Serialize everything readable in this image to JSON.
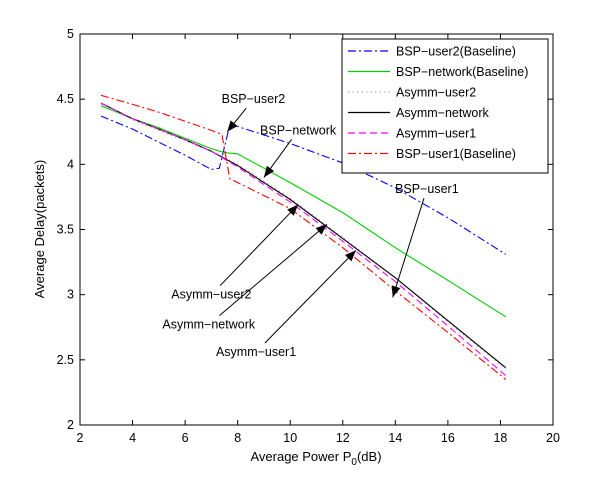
{
  "chart_data": {
    "type": "line",
    "title": "",
    "xlabel": "Average Power P",
    "xlabel_sub": "0",
    "xlabel_suffix": "(dB)",
    "ylabel": "Average Delay(packets)",
    "xlim": [
      2,
      20
    ],
    "ylim": [
      2,
      5
    ],
    "xticks": [
      2,
      4,
      6,
      8,
      10,
      12,
      14,
      16,
      18,
      20
    ],
    "yticks": [
      2,
      2.5,
      3,
      3.5,
      4,
      4.5,
      5
    ],
    "xtick_labels": [
      "2",
      "4",
      "6",
      "8",
      "10",
      "12",
      "14",
      "16",
      "18",
      "20"
    ],
    "ytick_labels": [
      "2",
      "2.5",
      "3",
      "3.5",
      "4",
      "4.5",
      "5"
    ],
    "grid": false,
    "legend_position": "top-right",
    "series": [
      {
        "name": "BSP−user2(Baseline)",
        "color": "#0000ff",
        "dash": "dashdot",
        "x": [
          2.8,
          4,
          5,
          6,
          7,
          7.3,
          7.7,
          8,
          10,
          12,
          14,
          16,
          18.2
        ],
        "y": [
          4.37,
          4.27,
          4.17,
          4.07,
          3.96,
          3.97,
          4.3,
          4.29,
          4.16,
          4.01,
          3.82,
          3.59,
          3.31
        ]
      },
      {
        "name": "BSP−network(Baseline)",
        "color": "#00cc00",
        "dash": "solid",
        "x": [
          2.8,
          4,
          5,
          6,
          7,
          7.5,
          8,
          9,
          10,
          12,
          14,
          16,
          18.2
        ],
        "y": [
          4.45,
          4.35,
          4.28,
          4.2,
          4.12,
          4.09,
          4.08,
          3.97,
          3.86,
          3.63,
          3.36,
          3.11,
          2.83
        ]
      },
      {
        "name": "Asymm−user2",
        "color": "#b0b0b0",
        "dash": "dotted",
        "x": [
          2.8,
          4,
          5,
          6,
          7,
          8,
          10,
          12,
          14,
          16,
          18.2
        ],
        "y": [
          4.46,
          4.34,
          4.26,
          4.18,
          4.1,
          4.0,
          3.74,
          3.44,
          3.13,
          2.79,
          2.43
        ]
      },
      {
        "name": "Asymm−network",
        "color": "#000000",
        "dash": "solid",
        "x": [
          2.8,
          4,
          5,
          6,
          7,
          8,
          10,
          12,
          14,
          16,
          18.2
        ],
        "y": [
          4.47,
          4.35,
          4.27,
          4.19,
          4.1,
          3.99,
          3.73,
          3.43,
          3.13,
          2.8,
          2.44
        ]
      },
      {
        "name": "Asymm−user1",
        "color": "#ff00ff",
        "dash": "dashed",
        "x": [
          2.8,
          4,
          5,
          6,
          7,
          8,
          10,
          12,
          14,
          16,
          18.2
        ],
        "y": [
          4.47,
          4.35,
          4.27,
          4.19,
          4.1,
          3.98,
          3.71,
          3.41,
          3.1,
          2.76,
          2.38
        ]
      },
      {
        "name": "BSP−user1(Baseline)",
        "color": "#ff0000",
        "dash": "dashdot",
        "x": [
          2.8,
          4,
          5,
          6,
          7,
          7.4,
          7.7,
          8,
          10,
          12,
          14,
          16,
          18.2
        ],
        "y": [
          4.53,
          4.46,
          4.4,
          4.33,
          4.26,
          4.23,
          3.89,
          3.86,
          3.66,
          3.36,
          3.03,
          2.71,
          2.35
        ]
      }
    ],
    "annotations": [
      {
        "text": "BSP−user2",
        "text_x": 8.6,
        "text_y": 4.5,
        "arrow_x": 7.6,
        "arrow_y": 4.25
      },
      {
        "text": "BSP−network",
        "text_x": 10.3,
        "text_y": 4.26,
        "arrow_x": 9.0,
        "arrow_y": 3.9
      },
      {
        "text": "BSP−user1",
        "text_x": 15.2,
        "text_y": 3.81,
        "arrow_x": 13.9,
        "arrow_y": 2.98
      },
      {
        "text": "Asymm−user2",
        "text_x": 7.0,
        "text_y": 3.0,
        "arrow_x": 10.3,
        "arrow_y": 3.69
      },
      {
        "text": "Asymm−network",
        "text_x": 6.9,
        "text_y": 2.77,
        "arrow_x": 11.4,
        "arrow_y": 3.54
      },
      {
        "text": "Asymm−user1",
        "text_x": 8.7,
        "text_y": 2.56,
        "arrow_x": 12.5,
        "arrow_y": 3.34
      }
    ]
  }
}
